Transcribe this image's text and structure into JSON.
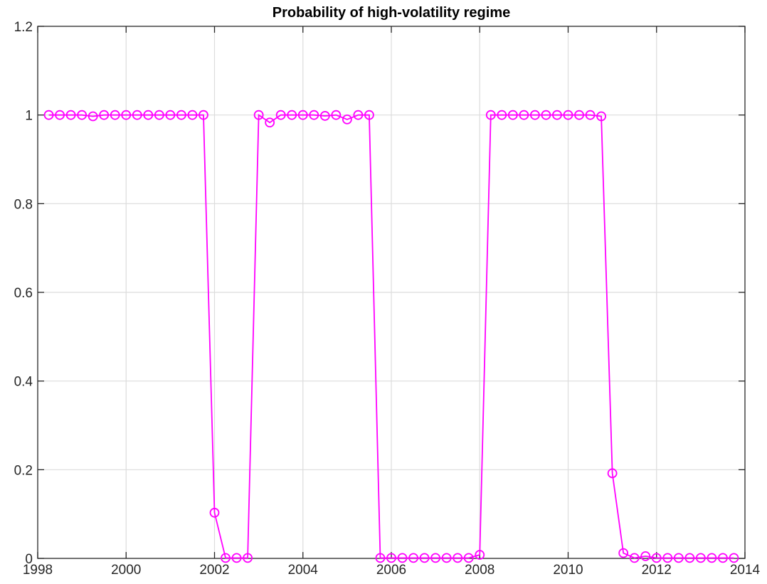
{
  "chart_data": {
    "type": "line",
    "title": "Probability of high-volatility regime",
    "xlabel": "",
    "ylabel": "",
    "xlim": [
      1998,
      2014
    ],
    "ylim": [
      0,
      1.2
    ],
    "xticks": [
      1998,
      2000,
      2002,
      2004,
      2006,
      2008,
      2010,
      2012,
      2014
    ],
    "xtick_labels": [
      "1998",
      "2000",
      "2002",
      "2004",
      "2006",
      "2008",
      "2010",
      "2012",
      "2014"
    ],
    "yticks": [
      0,
      0.2,
      0.4,
      0.6,
      0.8,
      1,
      1.2
    ],
    "ytick_labels": [
      "0",
      "0.2",
      "0.4",
      "0.6",
      "0.8",
      "1",
      "1.2"
    ],
    "grid": true,
    "marker": "circle",
    "color": "#ff00ff",
    "series": [
      {
        "x": [
          1998.25,
          1998.5,
          1998.75,
          1999.0,
          1999.25,
          1999.5,
          1999.75,
          2000.0,
          2000.25,
          2000.5,
          2000.75,
          2001.0,
          2001.25,
          2001.5,
          2001.75,
          2002.0,
          2002.25,
          2002.5,
          2002.75,
          2003.0,
          2003.25,
          2003.5,
          2003.75,
          2004.0,
          2004.25,
          2004.5,
          2004.75,
          2005.0,
          2005.25,
          2005.5,
          2005.75,
          2006.0,
          2006.25,
          2006.5,
          2006.75,
          2007.0,
          2007.25,
          2007.5,
          2007.75,
          2008.0,
          2008.25,
          2008.5,
          2008.75,
          2009.0,
          2009.25,
          2009.5,
          2009.75,
          2010.0,
          2010.25,
          2010.5,
          2010.75,
          2011.0,
          2011.25,
          2011.5,
          2011.75,
          2012.0,
          2012.25,
          2012.5,
          2012.75,
          2013.0,
          2013.25,
          2013.5,
          2013.75
        ],
        "y": [
          1.0,
          1.0,
          1.0,
          1.0,
          0.997,
          1.0,
          1.0,
          1.0,
          1.0,
          1.0,
          1.0,
          1.0,
          1.0,
          1.0,
          1.0,
          0.103,
          0.001,
          0.001,
          0.001,
          1.0,
          0.983,
          1.0,
          1.0,
          1.0,
          1.0,
          0.998,
          1.0,
          0.99,
          1.0,
          1.0,
          0.001,
          0.001,
          0.001,
          0.001,
          0.001,
          0.001,
          0.001,
          0.001,
          0.001,
          0.008,
          1.0,
          1.0,
          1.0,
          1.0,
          1.0,
          1.0,
          1.0,
          1.0,
          1.0,
          1.0,
          0.997,
          0.192,
          0.012,
          0.001,
          0.005,
          0.001,
          0.001,
          0.001,
          0.001,
          0.001,
          0.001,
          0.001,
          0.001
        ]
      }
    ]
  }
}
